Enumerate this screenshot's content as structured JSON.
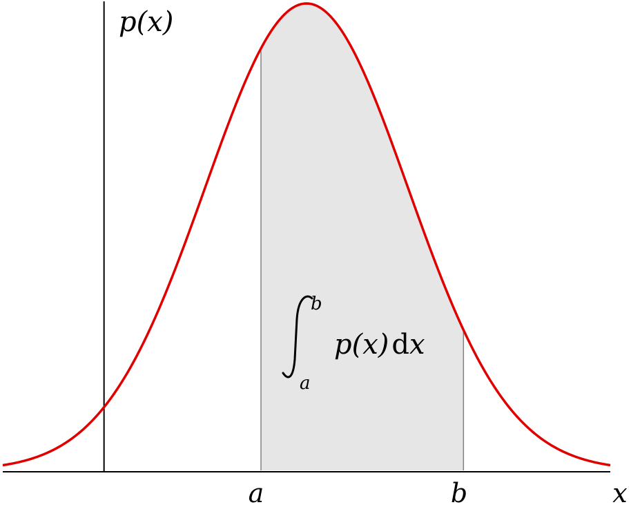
{
  "chart_data": {
    "type": "area",
    "curve": "normal-density",
    "mean": 0,
    "std_dev": 1,
    "xlim": [
      -3,
      3
    ],
    "y_axis_at_x": -2,
    "shade_from": -0.45,
    "shade_to": 1.55,
    "ylabel": "p(x)",
    "xlabel": "x",
    "tick_labels": [
      "a",
      "b"
    ],
    "annotation": {
      "integral_upper": "b",
      "integral_lower": "a",
      "integrand": "p(x)",
      "differential_d": "d",
      "differential_var": "x"
    },
    "curve_color": "#e00000",
    "shade_color": "#e6e6e6",
    "axis_color": "#000000",
    "bound_line_color": "#808080"
  }
}
